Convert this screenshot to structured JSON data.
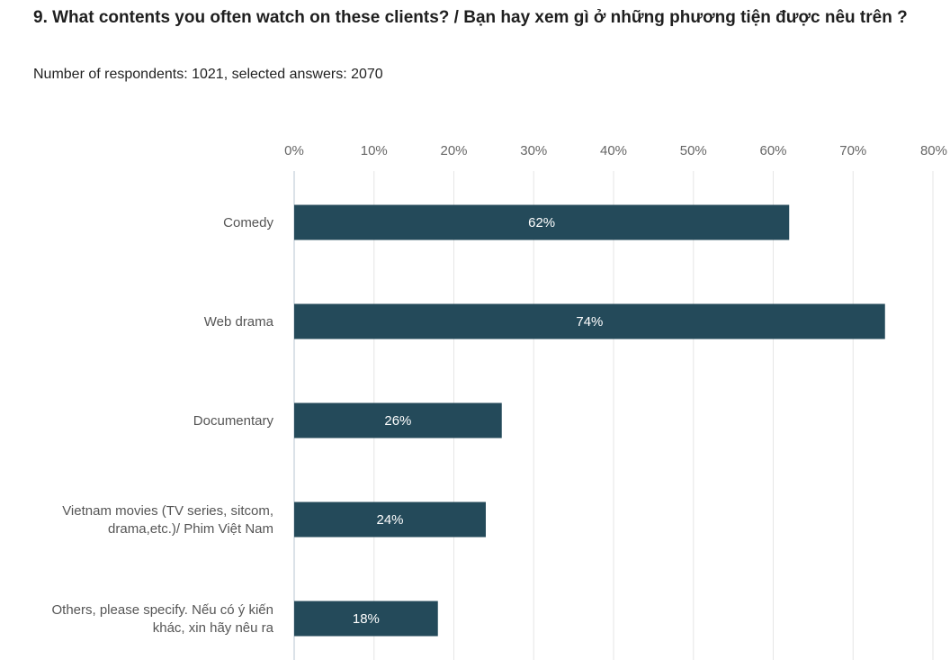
{
  "question": {
    "title": "9. What contents you often watch on these clients? / Bạn hay xem gì ở những phương tiện được nêu trên ?",
    "subtitle": "Number of respondents: 1021, selected answers: 2070"
  },
  "chart_data": {
    "type": "bar",
    "orientation": "horizontal",
    "title": "",
    "xlabel": "",
    "ylabel": "",
    "categories": [
      [
        "Comedy"
      ],
      [
        "Web drama"
      ],
      [
        "Documentary"
      ],
      [
        "Vietnam movies (TV series, sitcom,",
        "drama,etc.)/ Phim Việt Nam"
      ],
      [
        "Others, please specify. Nếu có ý kiến",
        "khác, xin hãy nêu ra"
      ]
    ],
    "values": [
      62,
      74,
      26,
      24,
      18
    ],
    "data_labels": [
      "62%",
      "74%",
      "26%",
      "24%",
      "18%"
    ],
    "xlim": [
      0,
      80
    ],
    "ticks": [
      "0%",
      "10%",
      "20%",
      "30%",
      "40%",
      "50%",
      "60%",
      "70%",
      "80%"
    ],
    "tick_values": [
      0,
      10,
      20,
      30,
      40,
      50,
      60,
      70,
      80
    ],
    "ticks_position": "top",
    "grid": true,
    "legend": false,
    "colors": {
      "bar": "#244a5a",
      "grid": "#e6e6e6",
      "axis": "#cfd8e0",
      "tick_text": "#666666",
      "category_text": "#555555",
      "bar_label_text": "#ffffff"
    }
  }
}
